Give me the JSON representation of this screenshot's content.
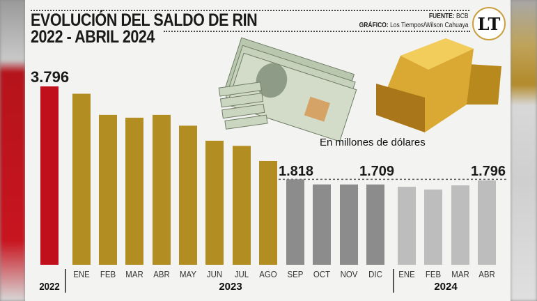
{
  "header": {
    "title_line1": "EVOLUCIÓN DEL SALDO DE RIN",
    "title_line2": "2022 - ABRIL 2024",
    "source_label": "FUENTE:",
    "source_value": "BCB",
    "graphic_label": "GRÁFICO:",
    "graphic_value": "Los Tiempos/Wilson Cahuaya",
    "logo_text": "LT"
  },
  "chart_data": {
    "type": "bar",
    "title": "EVOLUCIÓN DEL SALDO DE RIN 2022 - ABRIL 2024",
    "unit_label": "En millones de dólares",
    "categories": [
      "2022",
      "ENE",
      "FEB",
      "MAR",
      "ABR",
      "MAY",
      "JUN",
      "JUL",
      "AGO",
      "SEP",
      "OCT",
      "NOV",
      "DIC",
      "ENE",
      "FEB",
      "MAR",
      "ABR"
    ],
    "groups": [
      {
        "label": "2022",
        "count": 1
      },
      {
        "label": "2023",
        "count": 12
      },
      {
        "label": "2024",
        "count": 4
      }
    ],
    "values": [
      3796,
      3640,
      3190,
      3130,
      3190,
      2960,
      2640,
      2530,
      2210,
      1818,
      1710,
      1709,
      1709,
      1660,
      1600,
      1690,
      1796
    ],
    "data_labels": {
      "0": "3.796",
      "9": "1.818",
      "12": "1.709",
      "16": "1.796"
    },
    "colors": [
      "#c0101b",
      "#b28d22",
      "#b28d22",
      "#b28d22",
      "#b28d22",
      "#b28d22",
      "#b28d22",
      "#b28d22",
      "#b28d22",
      "#8c8c8c",
      "#8c8c8c",
      "#8c8c8c",
      "#8c8c8c",
      "#bdbdbd",
      "#bdbdbd",
      "#bdbdbd",
      "#bdbdbd"
    ],
    "ylim": [
      0,
      3796
    ],
    "grid": false
  }
}
